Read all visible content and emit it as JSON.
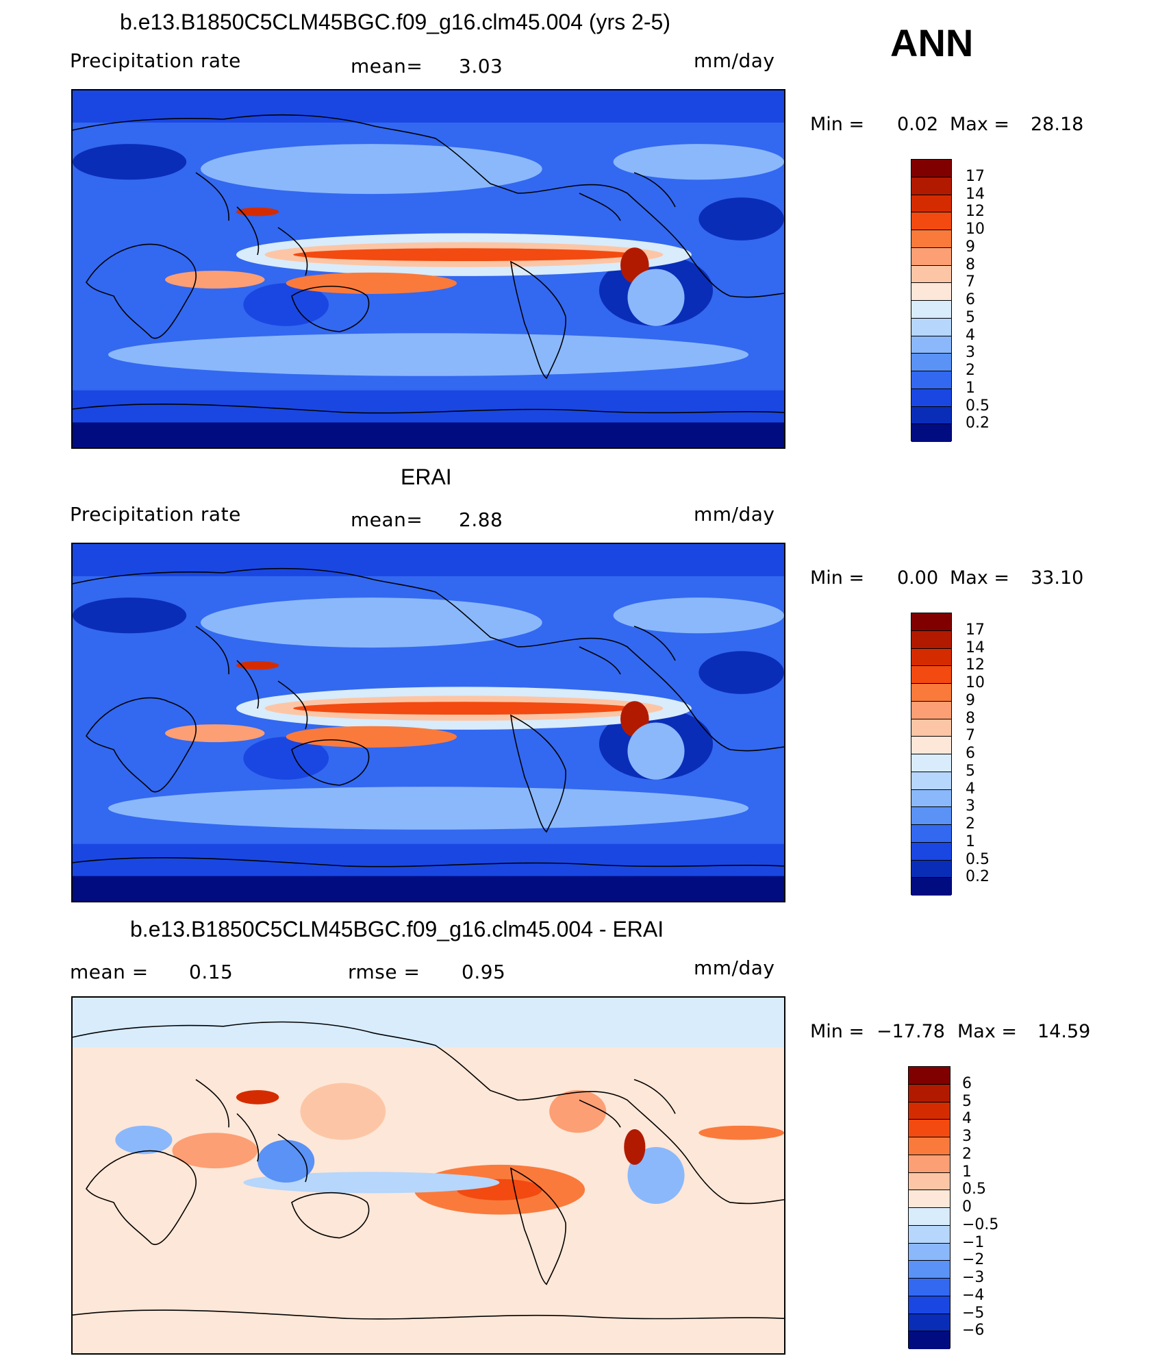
{
  "season": "ANN",
  "chart_data": [
    {
      "type": "heatmap",
      "title": "b.e13.B1850C5CLM45BGC.f09_g16.clm45.004 (yrs 2-5)",
      "variable": "Precipitation rate",
      "mean_label": "mean=",
      "mean": "3.03",
      "units": "mm/day",
      "min_label": "Min =",
      "min": "0.02",
      "max_label": "Max =",
      "max": "28.18",
      "colorbar_levels": [
        "17",
        "14",
        "12",
        "10",
        "9",
        "8",
        "7",
        "6",
        "5",
        "4",
        "3",
        "2",
        "1",
        "0.5",
        "0.2"
      ],
      "colorbar_colors": [
        "#800000",
        "#b21a00",
        "#d42c00",
        "#f24a10",
        "#fa7a3c",
        "#fc9f74",
        "#fcc6a6",
        "#fde7d8",
        "#d8ecfb",
        "#b6d6fb",
        "#8ab8fb",
        "#5a92f6",
        "#3368f0",
        "#1a47e2",
        "#0a2db8",
        "#000c80"
      ],
      "legend_position": "right"
    },
    {
      "type": "heatmap",
      "title": "ERAI",
      "variable": "Precipitation rate",
      "mean_label": "mean=",
      "mean": "2.88",
      "units": "mm/day",
      "min_label": "Min =",
      "min": "0.00",
      "max_label": "Max =",
      "max": "33.10",
      "colorbar_levels": [
        "17",
        "14",
        "12",
        "10",
        "9",
        "8",
        "7",
        "6",
        "5",
        "4",
        "3",
        "2",
        "1",
        "0.5",
        "0.2"
      ],
      "colorbar_colors": [
        "#800000",
        "#b21a00",
        "#d42c00",
        "#f24a10",
        "#fa7a3c",
        "#fc9f74",
        "#fcc6a6",
        "#fde7d8",
        "#d8ecfb",
        "#b6d6fb",
        "#8ab8fb",
        "#5a92f6",
        "#3368f0",
        "#1a47e2",
        "#0a2db8",
        "#000c80"
      ],
      "legend_position": "right"
    },
    {
      "type": "heatmap",
      "title": "b.e13.B1850C5CLM45BGC.f09_g16.clm45.004 - ERAI",
      "mean_label": "mean =",
      "mean": "0.15",
      "rmse_label": "rmse =",
      "rmse": "0.95",
      "units": "mm/day",
      "min_label": "Min =",
      "min": "−17.78",
      "max_label": "Max =",
      "max": "14.59",
      "colorbar_levels": [
        "6",
        "5",
        "4",
        "3",
        "2",
        "1",
        "0.5",
        "0",
        "−0.5",
        "−1",
        "−2",
        "−3",
        "−4",
        "−5",
        "−6"
      ],
      "colorbar_colors": [
        "#800000",
        "#b21a00",
        "#d42c00",
        "#f24a10",
        "#fa7a3c",
        "#fc9f74",
        "#fcc6a6",
        "#fde7d8",
        "#d8ecfb",
        "#b6d6fb",
        "#8ab8fb",
        "#5a92f6",
        "#3368f0",
        "#1a47e2",
        "#0a2db8",
        "#000c80"
      ],
      "legend_position": "right"
    }
  ]
}
